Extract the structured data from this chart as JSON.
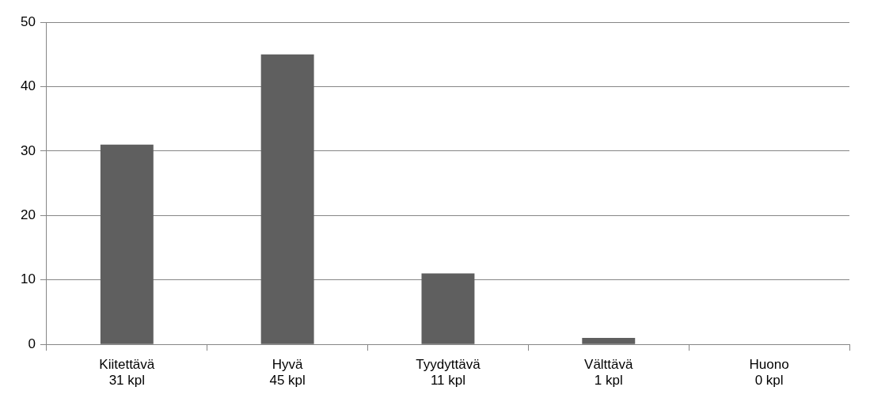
{
  "chart_data": {
    "type": "bar",
    "categories": [
      "Kiitettävä\n31 kpl",
      "Hyvä\n45 kpl",
      "Tyydyttävä\n11 kpl",
      "Välttävä\n1 kpl",
      "Huono\n0 kpl"
    ],
    "values": [
      31,
      45,
      11,
      1,
      0
    ],
    "color": "#5f5f5f",
    "ylim": [
      0,
      50
    ],
    "yticks": [
      0,
      10,
      20,
      30,
      40,
      50
    ],
    "grid": "y",
    "legend": false
  }
}
